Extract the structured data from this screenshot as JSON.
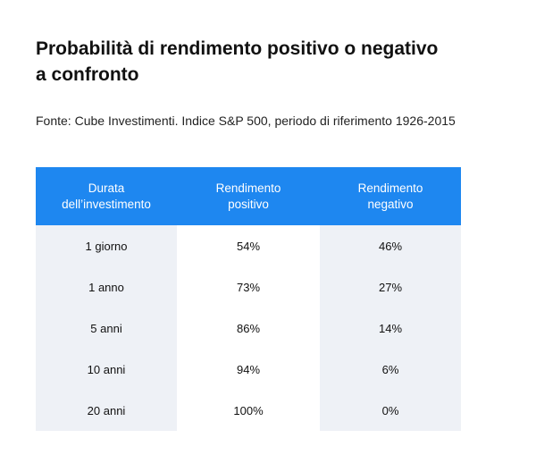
{
  "title": {
    "line1": "Probabilità di rendimento positivo o negativo",
    "line2": "a confronto"
  },
  "source": "Fonte: Cube Investimenti. Indice S&P 500, periodo di riferimento 1926-2015",
  "colors": {
    "header_bg": "#1e87f0",
    "shaded_column_bg": "#eef1f6"
  },
  "table": {
    "headers": [
      {
        "line1": "Durata",
        "line2": "dell’investimento"
      },
      {
        "line1": "Rendimento",
        "line2": "positivo"
      },
      {
        "line1": "Rendimento",
        "line2": "negativo"
      }
    ],
    "rows": [
      {
        "duration": "1 giorno",
        "positive": "54%",
        "negative": "46%"
      },
      {
        "duration": "1 anno",
        "positive": "73%",
        "negative": "27%"
      },
      {
        "duration": "5 anni",
        "positive": "86%",
        "negative": "14%"
      },
      {
        "duration": "10 anni",
        "positive": "94%",
        "negative": "6%"
      },
      {
        "duration": "20 anni",
        "positive": "100%",
        "negative": "0%"
      }
    ]
  }
}
